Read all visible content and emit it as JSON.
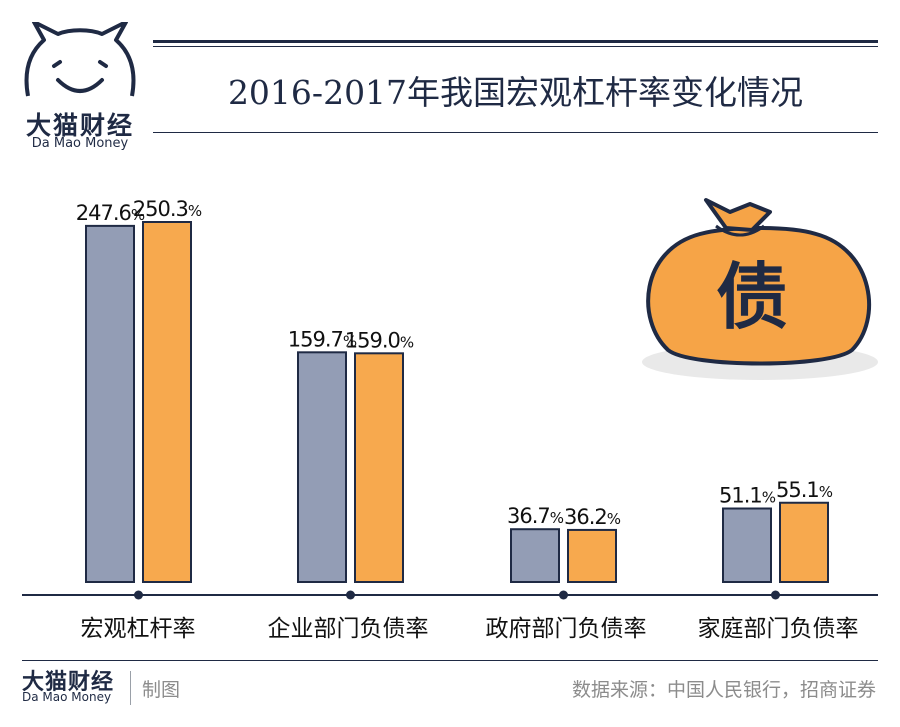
{
  "brand": {
    "name_cn": "大猫财经",
    "name_en": "Da Mao Money",
    "made_label": "制图"
  },
  "source_text": "数据来源：中国人民银行，招商证券",
  "badge": {
    "glyph": "债",
    "icon": "money-bag-icon"
  },
  "colors": {
    "series_2016": "#939db5",
    "series_2017": "#f7a94e",
    "navy": "#1f2a44",
    "bag": "#f6a447"
  },
  "chart_data": {
    "type": "bar",
    "title": "2016-2017年我国宏观杠杆率变化情况",
    "categories": [
      "宏观杠杆率",
      "企业部门负债率",
      "政府部门负债率",
      "家庭部门负债率"
    ],
    "unit": "%",
    "series": [
      {
        "values": [
          247.6,
          159.7,
          36.7,
          51.1
        ],
        "labels": [
          "247.6",
          "159.7",
          "36.7",
          "51.1"
        ]
      },
      {
        "values": [
          250.3,
          159.0,
          36.2,
          55.1
        ],
        "labels": [
          "250.3",
          "159.0",
          "36.2",
          "55.1"
        ]
      }
    ],
    "ylim": [
      0,
      250.3
    ],
    "xlabel": "",
    "ylabel": "",
    "grid": false,
    "legend": "none"
  }
}
